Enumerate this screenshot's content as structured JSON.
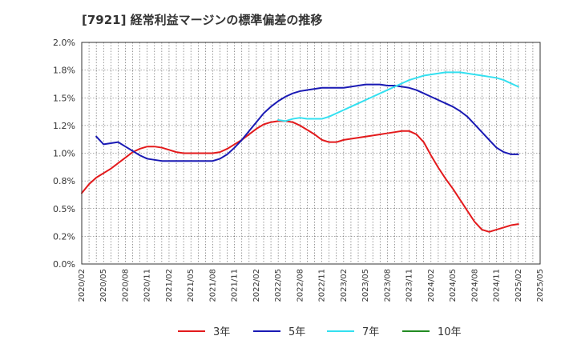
{
  "title": "[7921]  経常利益マージンの標準偏差の推移",
  "chart_data": {
    "type": "line",
    "title": "[7921]  経常利益マージンの標準偏差の推移",
    "xlabel": "",
    "ylabel": "",
    "x_start": "2020-02",
    "x_end": "2025-05",
    "x_ticks": [
      "2020/02",
      "2020/05",
      "2020/08",
      "2020/11",
      "2021/02",
      "2021/05",
      "2021/08",
      "2021/11",
      "2022/02",
      "2022/05",
      "2022/08",
      "2022/11",
      "2023/02",
      "2023/05",
      "2023/08",
      "2023/11",
      "2024/02",
      "2024/05",
      "2024/08",
      "2024/11",
      "2025/02",
      "2025/05"
    ],
    "y_ticks": [
      "0.0%",
      "0.2%",
      "0.5%",
      "0.8%",
      "1.0%",
      "1.2%",
      "1.5%",
      "1.8%",
      "2.0%"
    ],
    "ylim": [
      0,
      2.0
    ],
    "grid": true,
    "legend_position": "bottom",
    "series": [
      {
        "name": "3年",
        "color": "#e31a1c",
        "points": [
          [
            "2020-02",
            0.64
          ],
          [
            "2020-03",
            0.72
          ],
          [
            "2020-04",
            0.78
          ],
          [
            "2020-05",
            0.82
          ],
          [
            "2020-06",
            0.86
          ],
          [
            "2020-07",
            0.91
          ],
          [
            "2020-08",
            0.96
          ],
          [
            "2020-09",
            1.01
          ],
          [
            "2020-10",
            1.04
          ],
          [
            "2020-11",
            1.06
          ],
          [
            "2020-12",
            1.06
          ],
          [
            "2021-01",
            1.05
          ],
          [
            "2021-02",
            1.03
          ],
          [
            "2021-03",
            1.01
          ],
          [
            "2021-04",
            1.0
          ],
          [
            "2021-05",
            1.0
          ],
          [
            "2021-06",
            1.0
          ],
          [
            "2021-07",
            1.0
          ],
          [
            "2021-08",
            1.0
          ],
          [
            "2021-09",
            1.01
          ],
          [
            "2021-10",
            1.04
          ],
          [
            "2021-11",
            1.08
          ],
          [
            "2021-12",
            1.12
          ],
          [
            "2022-01",
            1.17
          ],
          [
            "2022-02",
            1.22
          ],
          [
            "2022-03",
            1.26
          ],
          [
            "2022-04",
            1.28
          ],
          [
            "2022-05",
            1.29
          ],
          [
            "2022-06",
            1.29
          ],
          [
            "2022-07",
            1.28
          ],
          [
            "2022-08",
            1.25
          ],
          [
            "2022-09",
            1.21
          ],
          [
            "2022-10",
            1.17
          ],
          [
            "2022-11",
            1.12
          ],
          [
            "2022-12",
            1.1
          ],
          [
            "2023-01",
            1.1
          ],
          [
            "2023-02",
            1.12
          ],
          [
            "2023-03",
            1.13
          ],
          [
            "2023-04",
            1.14
          ],
          [
            "2023-05",
            1.15
          ],
          [
            "2023-06",
            1.16
          ],
          [
            "2023-07",
            1.17
          ],
          [
            "2023-08",
            1.18
          ],
          [
            "2023-09",
            1.19
          ],
          [
            "2023-10",
            1.2
          ],
          [
            "2023-11",
            1.2
          ],
          [
            "2023-12",
            1.17
          ],
          [
            "2024-01",
            1.1
          ],
          [
            "2024-02",
            0.98
          ],
          [
            "2024-03",
            0.87
          ],
          [
            "2024-04",
            0.77
          ],
          [
            "2024-05",
            0.68
          ],
          [
            "2024-06",
            0.58
          ],
          [
            "2024-07",
            0.48
          ],
          [
            "2024-08",
            0.38
          ],
          [
            "2024-09",
            0.31
          ],
          [
            "2024-10",
            0.29
          ],
          [
            "2024-11",
            0.31
          ],
          [
            "2024-12",
            0.33
          ],
          [
            "2025-01",
            0.35
          ],
          [
            "2025-02",
            0.36
          ]
        ]
      },
      {
        "name": "5年",
        "color": "#1a1ab4",
        "points": [
          [
            "2020-04",
            1.15
          ],
          [
            "2020-05",
            1.08
          ],
          [
            "2020-06",
            1.09
          ],
          [
            "2020-07",
            1.1
          ],
          [
            "2020-08",
            1.06
          ],
          [
            "2020-09",
            1.02
          ],
          [
            "2020-10",
            0.98
          ],
          [
            "2020-11",
            0.95
          ],
          [
            "2020-12",
            0.94
          ],
          [
            "2021-01",
            0.93
          ],
          [
            "2021-02",
            0.93
          ],
          [
            "2021-03",
            0.93
          ],
          [
            "2021-04",
            0.93
          ],
          [
            "2021-05",
            0.93
          ],
          [
            "2021-06",
            0.93
          ],
          [
            "2021-07",
            0.93
          ],
          [
            "2021-08",
            0.93
          ],
          [
            "2021-09",
            0.95
          ],
          [
            "2021-10",
            0.99
          ],
          [
            "2021-11",
            1.05
          ],
          [
            "2021-12",
            1.12
          ],
          [
            "2022-01",
            1.2
          ],
          [
            "2022-02",
            1.28
          ],
          [
            "2022-03",
            1.36
          ],
          [
            "2022-04",
            1.42
          ],
          [
            "2022-05",
            1.47
          ],
          [
            "2022-06",
            1.51
          ],
          [
            "2022-07",
            1.54
          ],
          [
            "2022-08",
            1.56
          ],
          [
            "2022-09",
            1.57
          ],
          [
            "2022-10",
            1.58
          ],
          [
            "2022-11",
            1.59
          ],
          [
            "2022-12",
            1.59
          ],
          [
            "2023-01",
            1.59
          ],
          [
            "2023-02",
            1.59
          ],
          [
            "2023-03",
            1.6
          ],
          [
            "2023-04",
            1.61
          ],
          [
            "2023-05",
            1.62
          ],
          [
            "2023-06",
            1.62
          ],
          [
            "2023-07",
            1.62
          ],
          [
            "2023-08",
            1.61
          ],
          [
            "2023-09",
            1.61
          ],
          [
            "2023-10",
            1.6
          ],
          [
            "2023-11",
            1.59
          ],
          [
            "2023-12",
            1.57
          ],
          [
            "2024-01",
            1.54
          ],
          [
            "2024-02",
            1.51
          ],
          [
            "2024-03",
            1.48
          ],
          [
            "2024-04",
            1.45
          ],
          [
            "2024-05",
            1.42
          ],
          [
            "2024-06",
            1.38
          ],
          [
            "2024-07",
            1.33
          ],
          [
            "2024-08",
            1.26
          ],
          [
            "2024-09",
            1.19
          ],
          [
            "2024-10",
            1.12
          ],
          [
            "2024-11",
            1.05
          ],
          [
            "2024-12",
            1.01
          ],
          [
            "2025-01",
            0.99
          ],
          [
            "2025-02",
            0.99
          ]
        ]
      },
      {
        "name": "7年",
        "color": "#33e0f0",
        "points": [
          [
            "2022-05",
            1.3
          ],
          [
            "2022-06",
            1.29
          ],
          [
            "2022-07",
            1.31
          ],
          [
            "2022-08",
            1.32
          ],
          [
            "2022-09",
            1.31
          ],
          [
            "2022-10",
            1.31
          ],
          [
            "2022-11",
            1.31
          ],
          [
            "2022-12",
            1.33
          ],
          [
            "2023-01",
            1.36
          ],
          [
            "2023-02",
            1.39
          ],
          [
            "2023-03",
            1.42
          ],
          [
            "2023-04",
            1.45
          ],
          [
            "2023-05",
            1.48
          ],
          [
            "2023-06",
            1.51
          ],
          [
            "2023-07",
            1.54
          ],
          [
            "2023-08",
            1.57
          ],
          [
            "2023-09",
            1.6
          ],
          [
            "2023-10",
            1.63
          ],
          [
            "2023-11",
            1.66
          ],
          [
            "2023-12",
            1.68
          ],
          [
            "2024-01",
            1.7
          ],
          [
            "2024-02",
            1.71
          ],
          [
            "2024-03",
            1.72
          ],
          [
            "2024-04",
            1.73
          ],
          [
            "2024-05",
            1.73
          ],
          [
            "2024-06",
            1.73
          ],
          [
            "2024-07",
            1.72
          ],
          [
            "2024-08",
            1.71
          ],
          [
            "2024-09",
            1.7
          ],
          [
            "2024-10",
            1.69
          ],
          [
            "2024-11",
            1.68
          ],
          [
            "2024-12",
            1.66
          ],
          [
            "2025-01",
            1.63
          ],
          [
            "2025-02",
            1.6
          ]
        ]
      },
      {
        "name": "10年",
        "color": "#228b22",
        "points": []
      }
    ]
  }
}
